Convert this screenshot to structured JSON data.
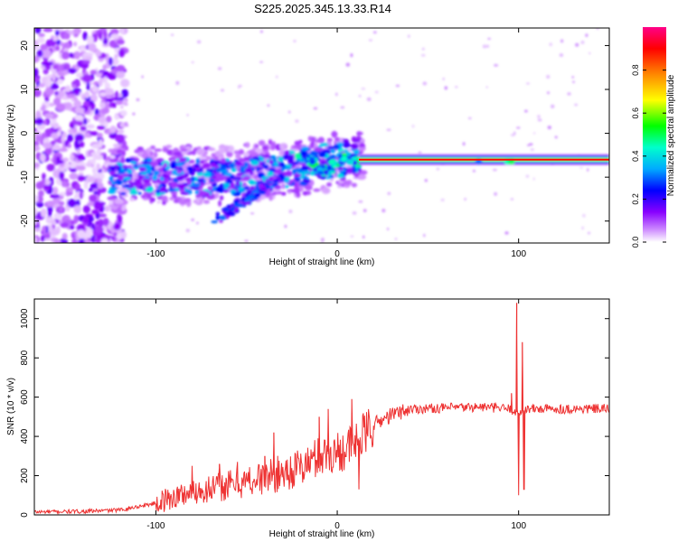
{
  "title": "S225.2025.345.13.33.R14",
  "chart_data": [
    {
      "type": "heatmap",
      "xlabel": "Height of straight line (km)",
      "ylabel": "Frequency (Hz)",
      "xlim": [
        -167,
        150
      ],
      "ylim": [
        -25,
        24
      ],
      "xticks": [
        -100,
        0,
        100
      ],
      "yticks": [
        20,
        10,
        0,
        -10,
        -20
      ],
      "colorbar": {
        "label": "Normalized spectral amplitude",
        "range": [
          0,
          1
        ],
        "ticks": [
          0.0,
          0.2,
          0.4,
          0.6,
          0.8
        ],
        "colors": [
          "#ffffff",
          "#cc88ff",
          "#8800ff",
          "#0000ff",
          "#00aaff",
          "#00ffcc",
          "#00ff00",
          "#ffff00",
          "#ff8800",
          "#ff0000",
          "#ff0088"
        ]
      },
      "features": {
        "carrier_frequency_hz": -6,
        "carrier_start_km": 12,
        "carrier_end_km": 150,
        "carrier_amplitude": 0.9,
        "noise_region_km": [
          -167,
          -120
        ]
      },
      "grid": false
    },
    {
      "type": "line",
      "xlabel": "Height of straight line (km)",
      "ylabel": "SNR (10 * v/v)",
      "xlim": [
        -167,
        150
      ],
      "ylim": [
        0,
        1100
      ],
      "xticks": [
        -100,
        0,
        100
      ],
      "yticks": [
        0,
        200,
        400,
        600,
        800,
        1000
      ],
      "series": [
        {
          "color": "#ee3333",
          "profile_x": [
            -167,
            -140,
            -120,
            -100,
            -80,
            -60,
            -40,
            -20,
            -10,
            0,
            10,
            20,
            30,
            40,
            60,
            80,
            95,
            100,
            105,
            120,
            150
          ],
          "profile_y": [
            15,
            18,
            25,
            60,
            120,
            150,
            190,
            240,
            300,
            320,
            360,
            460,
            510,
            540,
            545,
            550,
            540,
            520,
            540,
            540,
            540
          ],
          "spikes": [
            {
              "x": -80,
              "y": 250
            },
            {
              "x": -65,
              "y": 260
            },
            {
              "x": -55,
              "y": 270
            },
            {
              "x": -40,
              "y": 300
            },
            {
              "x": -35,
              "y": 420
            },
            {
              "x": -10,
              "y": 500
            },
            {
              "x": -5,
              "y": 540
            },
            {
              "x": 8,
              "y": 590
            },
            {
              "x": 12,
              "y": 130
            },
            {
              "x": 96,
              "y": 620
            },
            {
              "x": 99,
              "y": 1080
            },
            {
              "x": 100,
              "y": 100
            },
            {
              "x": 102,
              "y": 880
            },
            {
              "x": 103,
              "y": 130
            }
          ]
        }
      ],
      "grid": false
    }
  ]
}
